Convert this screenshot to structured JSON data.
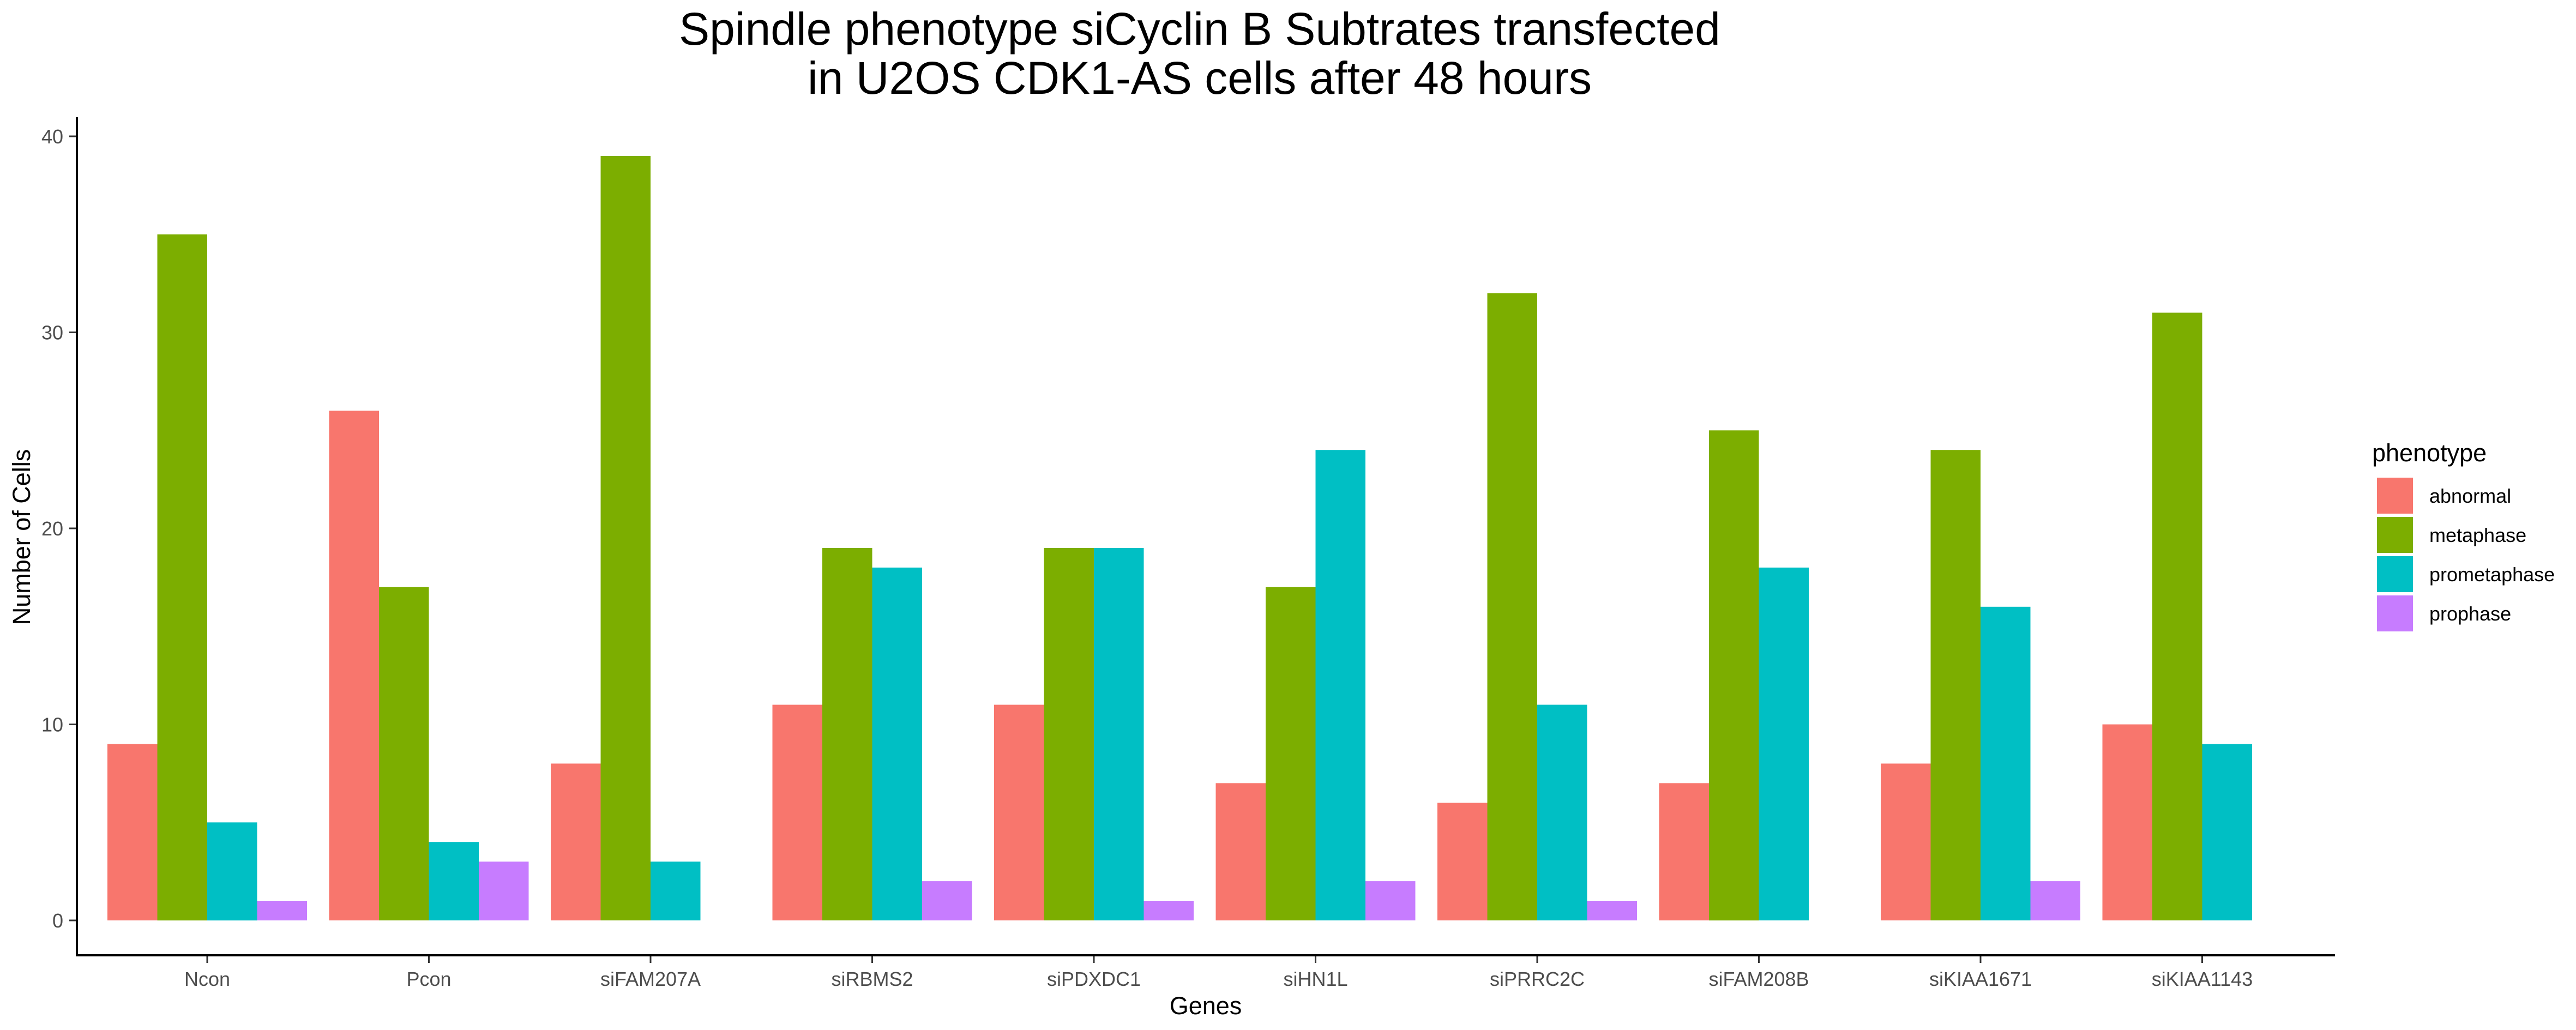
{
  "chart_data": {
    "type": "bar",
    "title_lines": [
      "Spindle phenotype siCyclin B Subtrates transfected",
      "in U2OS CDK1-AS cells after 48 hours"
    ],
    "xlabel": "Genes",
    "ylabel": "Number of Cells",
    "categories": [
      "Ncon",
      "Pcon",
      "siFAM207A",
      "siRBMS2",
      "siPDXDC1",
      "siHN1L",
      "siPRRC2C",
      "siFAM208B",
      "siKIAA1671",
      "siKIAA1143"
    ],
    "ylim": [
      0,
      40
    ],
    "yticks": [
      0,
      10,
      20,
      30,
      40
    ],
    "grid": false,
    "legend": {
      "title": "phenotype",
      "position": "right"
    },
    "series": [
      {
        "name": "abnormal",
        "color": "#F8766D",
        "values": [
          9,
          26,
          8,
          11,
          11,
          7,
          6,
          7,
          8,
          10
        ]
      },
      {
        "name": "metaphase",
        "color": "#7CAE00",
        "values": [
          35,
          17,
          39,
          19,
          19,
          17,
          32,
          25,
          24,
          31
        ]
      },
      {
        "name": "prometaphase",
        "color": "#00BFC4",
        "values": [
          5,
          4,
          3,
          18,
          19,
          24,
          11,
          18,
          16,
          9
        ]
      },
      {
        "name": "prophase",
        "color": "#C77CFF",
        "values": [
          1,
          3,
          null,
          2,
          1,
          2,
          1,
          null,
          2,
          null
        ]
      }
    ]
  }
}
